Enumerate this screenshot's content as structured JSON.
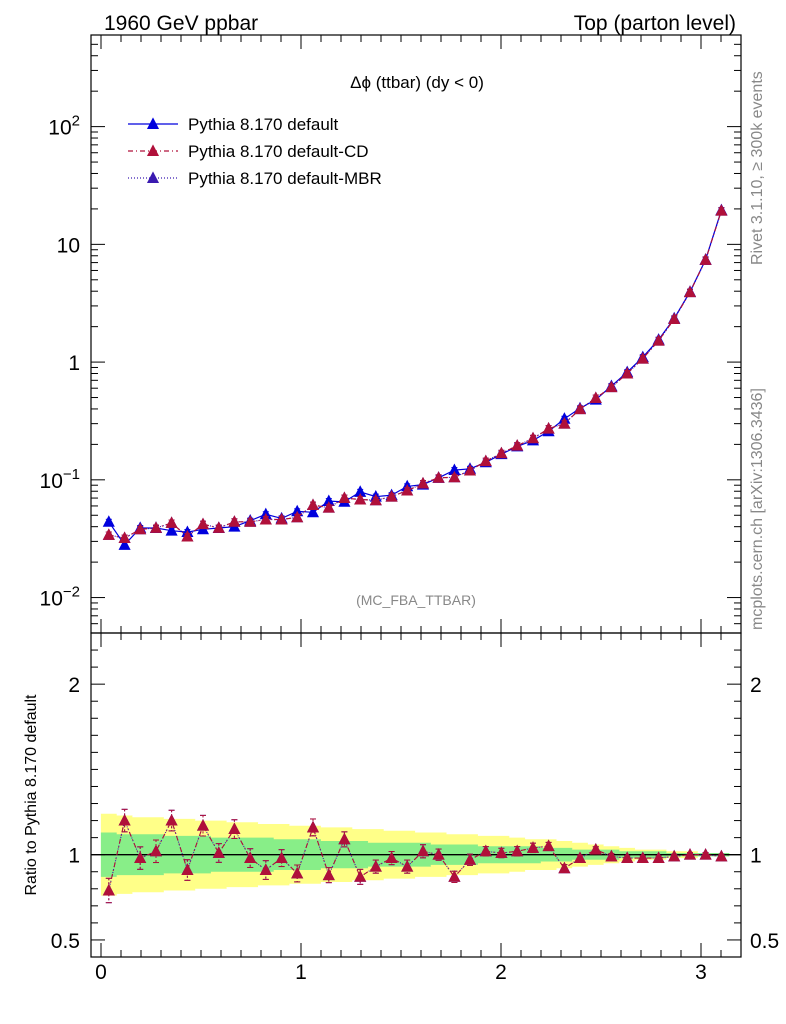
{
  "header": {
    "left": "1960 GeV ppbar",
    "right": "Top (parton level)"
  },
  "side_labels": {
    "rivet": "Rivet 3.1.10, ≥ 300k events",
    "mcplots": "mcplots.cern.ch [arXiv:1306.3436]"
  },
  "colors": {
    "default": "#0000dd",
    "cd": "#b0103a",
    "mbr": "#3a1ab0",
    "band_outer": "#ffff88",
    "band_inner": "#88ee88"
  },
  "chart_data": [
    {
      "type": "line",
      "panel": "main",
      "title": "Δϕ (ttbar) (dy < 0)",
      "watermark": "(MC_FBA_TTBAR)",
      "xlabel": "",
      "ylabel": "",
      "yscale": "log",
      "ylim": [
        0.005,
        600
      ],
      "xlim": [
        -0.05,
        3.2
      ],
      "legend_position": "top-left",
      "y_ticks": [
        {
          "value": 0.01,
          "base": "10",
          "exp": "−2"
        },
        {
          "value": 0.1,
          "base": "10",
          "exp": "−1"
        },
        {
          "value": 1,
          "base": "1",
          "exp": ""
        },
        {
          "value": 10,
          "base": "10",
          "exp": ""
        },
        {
          "value": 100,
          "base": "10",
          "exp": "2"
        }
      ],
      "x": [
        0.039,
        0.118,
        0.196,
        0.275,
        0.353,
        0.432,
        0.51,
        0.589,
        0.667,
        0.746,
        0.824,
        0.903,
        0.981,
        1.06,
        1.139,
        1.217,
        1.296,
        1.374,
        1.453,
        1.531,
        1.61,
        1.688,
        1.767,
        1.845,
        1.924,
        2.002,
        2.081,
        2.16,
        2.238,
        2.317,
        2.395,
        2.474,
        2.552,
        2.631,
        2.709,
        2.788,
        2.866,
        2.945,
        3.023,
        3.102
      ],
      "series": [
        {
          "name": "Pythia 8.170 default",
          "style": "solid",
          "values": [
            0.044,
            0.028,
            0.039,
            0.039,
            0.037,
            0.036,
            0.038,
            0.039,
            0.04,
            0.045,
            0.051,
            0.047,
            0.054,
            0.053,
            0.066,
            0.065,
            0.079,
            0.072,
            0.074,
            0.088,
            0.091,
            0.104,
            0.121,
            0.124,
            0.141,
            0.165,
            0.192,
            0.216,
            0.258,
            0.33,
            0.405,
            0.48,
            0.625,
            0.82,
            1.1,
            1.55,
            2.35,
            3.95,
            7.4,
            19.5
          ]
        },
        {
          "name": "Pythia 8.170 default-CD",
          "style": "dashdot",
          "values": [
            0.034,
            0.032,
            0.038,
            0.039,
            0.043,
            0.033,
            0.042,
            0.039,
            0.044,
            0.044,
            0.046,
            0.046,
            0.048,
            0.061,
            0.058,
            0.07,
            0.068,
            0.067,
            0.072,
            0.081,
            0.093,
            0.104,
            0.105,
            0.12,
            0.144,
            0.168,
            0.195,
            0.225,
            0.272,
            0.3,
            0.398,
            0.495,
            0.612,
            0.8,
            1.07,
            1.52,
            2.32,
            3.92,
            7.38,
            19.3
          ]
        },
        {
          "name": "Pythia 8.170 default-MBR",
          "style": "dotted",
          "values": [
            0.034,
            0.032,
            0.038,
            0.039,
            0.043,
            0.033,
            0.042,
            0.039,
            0.044,
            0.044,
            0.046,
            0.046,
            0.048,
            0.061,
            0.058,
            0.07,
            0.068,
            0.067,
            0.072,
            0.081,
            0.093,
            0.104,
            0.105,
            0.12,
            0.144,
            0.168,
            0.195,
            0.225,
            0.272,
            0.3,
            0.398,
            0.495,
            0.612,
            0.8,
            1.07,
            1.52,
            2.32,
            3.92,
            7.38,
            19.3
          ]
        }
      ]
    },
    {
      "type": "line",
      "panel": "ratio",
      "xlabel": "",
      "ylabel": "Ratio to Pythia 8.170 default",
      "ylim": [
        0.4,
        2.3
      ],
      "xlim": [
        -0.05,
        3.2
      ],
      "x_ticks": [
        0,
        1,
        2,
        3
      ],
      "y_ticks": [
        0.5,
        1,
        2
      ],
      "x": [
        0.039,
        0.118,
        0.196,
        0.275,
        0.353,
        0.432,
        0.51,
        0.589,
        0.667,
        0.746,
        0.824,
        0.903,
        0.981,
        1.06,
        1.139,
        1.217,
        1.296,
        1.374,
        1.453,
        1.531,
        1.61,
        1.688,
        1.767,
        1.845,
        1.924,
        2.002,
        2.081,
        2.16,
        2.238,
        2.317,
        2.395,
        2.474,
        2.552,
        2.631,
        2.709,
        2.788,
        2.866,
        2.945,
        3.023,
        3.102
      ],
      "band_outer_halfwidth": [
        0.24,
        0.23,
        0.22,
        0.22,
        0.21,
        0.21,
        0.2,
        0.2,
        0.19,
        0.19,
        0.18,
        0.18,
        0.17,
        0.17,
        0.16,
        0.16,
        0.15,
        0.15,
        0.14,
        0.14,
        0.13,
        0.13,
        0.12,
        0.12,
        0.11,
        0.11,
        0.1,
        0.09,
        0.09,
        0.08,
        0.07,
        0.06,
        0.05,
        0.04,
        0.03,
        0.03,
        0.02,
        0.02,
        0.01,
        0.01
      ],
      "band_inner_halfwidth": [
        0.13,
        0.12,
        0.12,
        0.12,
        0.11,
        0.11,
        0.11,
        0.1,
        0.1,
        0.1,
        0.1,
        0.09,
        0.09,
        0.09,
        0.08,
        0.08,
        0.08,
        0.07,
        0.07,
        0.07,
        0.07,
        0.06,
        0.06,
        0.06,
        0.05,
        0.05,
        0.05,
        0.05,
        0.04,
        0.04,
        0.03,
        0.03,
        0.03,
        0.02,
        0.02,
        0.02,
        0.01,
        0.01,
        0.01,
        0.01
      ],
      "series": [
        {
          "name": "Pythia 8.170 default-CD",
          "style": "dashdot",
          "values": [
            0.79,
            1.2,
            0.98,
            1.02,
            1.2,
            0.91,
            1.17,
            1.01,
            1.15,
            0.98,
            0.91,
            0.98,
            0.89,
            1.16,
            0.88,
            1.09,
            0.87,
            0.93,
            0.98,
            0.93,
            1.02,
            1.0,
            0.87,
            0.97,
            1.02,
            1.01,
            1.02,
            1.04,
            1.05,
            0.92,
            0.98,
            1.03,
            0.99,
            0.98,
            0.98,
            0.98,
            0.99,
            1.0,
            1.0,
            0.99
          ]
        },
        {
          "name": "Pythia 8.170 default-MBR",
          "style": "dotted",
          "values": [
            0.79,
            1.2,
            0.98,
            1.02,
            1.2,
            0.91,
            1.17,
            1.01,
            1.15,
            0.98,
            0.91,
            0.98,
            0.89,
            1.16,
            0.88,
            1.09,
            0.87,
            0.93,
            0.98,
            0.93,
            1.02,
            1.0,
            0.87,
            0.97,
            1.02,
            1.01,
            1.02,
            1.04,
            1.05,
            0.92,
            0.98,
            1.03,
            0.99,
            0.98,
            0.98,
            0.98,
            0.99,
            1.0,
            1.0,
            0.99
          ]
        }
      ]
    }
  ]
}
